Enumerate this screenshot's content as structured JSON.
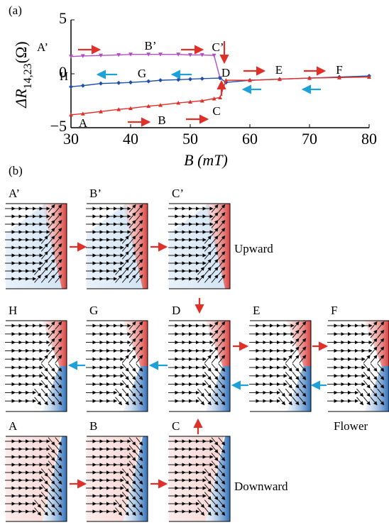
{
  "chart_data": {
    "type": "line",
    "panel_label": "(a)",
    "xlabel": "B (mT)",
    "ylabel": {
      "main": "ΔR",
      "sub": "14,23",
      "unit": "(Ω)"
    },
    "xlim": [
      30,
      80
    ],
    "xticks": [
      30,
      40,
      50,
      60,
      70,
      80
    ],
    "ylim": [
      -5,
      5
    ],
    "yticks": [
      {
        "value": -5,
        "label": "−5"
      },
      0,
      5
    ],
    "series": [
      {
        "color": "#b04fc0",
        "marker": "triangle-down",
        "x": [
          30,
          32,
          35,
          38,
          40,
          43,
          45,
          48,
          50,
          52,
          54,
          55
        ],
        "values": [
          1.6,
          1.65,
          1.7,
          1.75,
          1.8,
          1.8,
          1.8,
          1.8,
          1.75,
          1.75,
          1.7,
          -0.4
        ]
      },
      {
        "color": "#1f4fa8",
        "marker": "diamond",
        "x": [
          30,
          32,
          35,
          38,
          40,
          43,
          45,
          48,
          50,
          52,
          55,
          56,
          60,
          65,
          70,
          75,
          80
        ],
        "values": [
          -1.2,
          -1.1,
          -0.9,
          -0.85,
          -0.8,
          -0.7,
          -0.6,
          -0.55,
          -0.5,
          -0.45,
          -0.4,
          -0.8,
          -0.6,
          -0.5,
          -0.4,
          -0.3,
          -0.2
        ]
      },
      {
        "color": "#e0302a",
        "marker": "triangle-up",
        "x": [
          30,
          32,
          35,
          38,
          40,
          43,
          45,
          48,
          50,
          52,
          54,
          55,
          56,
          60,
          65,
          70,
          75,
          80
        ],
        "values": [
          -3.8,
          -3.7,
          -3.5,
          -3.3,
          -3.2,
          -3.0,
          -2.9,
          -2.7,
          -2.6,
          -2.5,
          -2.3,
          -2.2,
          -0.6,
          -0.6,
          -0.5,
          -0.4,
          -0.35,
          -0.3
        ]
      }
    ],
    "annotations": [
      "A’",
      "B’",
      "C’",
      "H",
      "G",
      "D",
      "E",
      "F",
      "A",
      "B",
      "C"
    ]
  },
  "diagram": {
    "panel_label": "(b)",
    "rows": [
      {
        "panels": [
          "A’",
          "B’",
          "C’"
        ],
        "note": "Upward"
      },
      {
        "panels": [
          "H",
          "G",
          "D",
          "E",
          "F"
        ],
        "note": "Flower"
      },
      {
        "panels": [
          "A",
          "B",
          "C"
        ],
        "note": "Downward"
      }
    ]
  }
}
